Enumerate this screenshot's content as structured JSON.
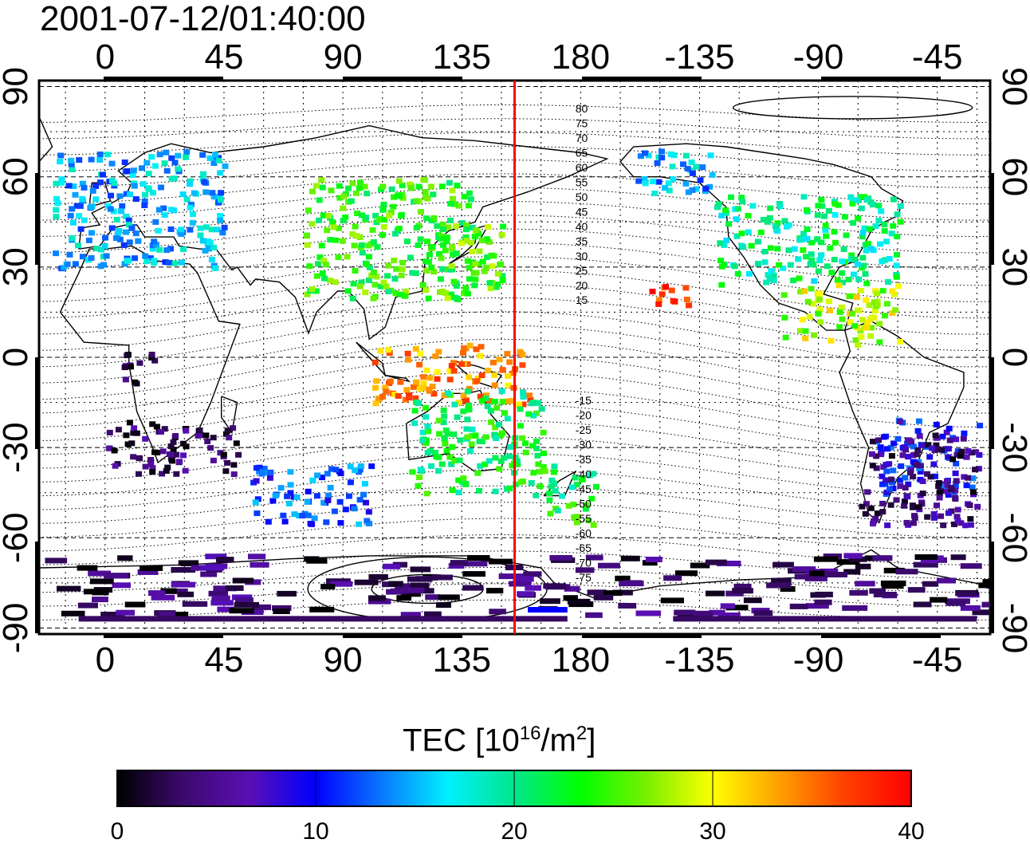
{
  "title": "2001-07-12/01:40:00",
  "colorbar": {
    "label_main": "TEC  [10",
    "label_exp": "16",
    "label_unit": "/m",
    "label_exp2": "2",
    "label_close": "]",
    "ticks": [
      "0",
      "10",
      "20",
      "30",
      "40"
    ],
    "range": [
      0,
      40
    ],
    "colors": [
      "#000000",
      "#3c0a6e",
      "#5a0fb4",
      "#0000ff",
      "#0a78ff",
      "#00f0ff",
      "#00e68c",
      "#00ff00",
      "#78f000",
      "#ffff00",
      "#ffa000",
      "#ff4000",
      "#ff0000"
    ]
  },
  "map": {
    "lon_ticks": [
      "0",
      "45",
      "90",
      "135",
      "180",
      "-135",
      "-90",
      "-45"
    ],
    "lon_values": [
      0,
      45,
      90,
      135,
      180,
      225,
      270,
      315
    ],
    "lat_ticks": [
      "90",
      "60",
      "30",
      "0",
      "-30",
      "-60",
      "-90"
    ],
    "lat_values": [
      90,
      60,
      30,
      0,
      -30,
      -60,
      -90
    ],
    "lon_range": [
      -25,
      335
    ],
    "lat_range": [
      -92,
      92
    ],
    "meridian_line_lon": 155,
    "meridian_color": "#ff0000",
    "mlat_labels": [
      "80",
      "75",
      "70",
      "65",
      "60",
      "55",
      "50",
      "45",
      "40",
      "35",
      "30",
      "25",
      "20",
      "15",
      "-15",
      "-20",
      "-25",
      "-30",
      "-35",
      "-40",
      "-45",
      "-50",
      "-55",
      "-60",
      "-65",
      "-70",
      "-75"
    ]
  },
  "chart_data": {
    "type": "heatmap",
    "title": "2001-07-12/01:40:00",
    "xlabel": "",
    "ylabel": "",
    "colorbar_label": "TEC [10^16/m^2]",
    "color_range": [
      0,
      40
    ],
    "regions": [
      {
        "lon": [
          -20,
          45
        ],
        "lat": [
          30,
          70
        ],
        "tec": 15
      },
      {
        "lon": [
          0,
          50
        ],
        "lat": [
          -38,
          -20
        ],
        "tec": 3
      },
      {
        "lon": [
          5,
          20
        ],
        "lat": [
          -8,
          2
        ],
        "tec": 2
      },
      {
        "lon": [
          55,
          100
        ],
        "lat": [
          -55,
          -35
        ],
        "tec": 12
      },
      {
        "lon": [
          75,
          140
        ],
        "lat": [
          20,
          60
        ],
        "tec": 24
      },
      {
        "lon": [
          120,
          150
        ],
        "lat": [
          20,
          45
        ],
        "tec": 25
      },
      {
        "lon": [
          100,
          160
        ],
        "lat": [
          -15,
          5
        ],
        "tec": 34
      },
      {
        "lon": [
          115,
          165
        ],
        "lat": [
          -45,
          -10
        ],
        "tec": 22
      },
      {
        "lon": [
          165,
          185
        ],
        "lat": [
          -55,
          -35
        ],
        "tec": 22
      },
      {
        "lon": [
          200,
          230
        ],
        "lat": [
          55,
          70
        ],
        "tec": 15
      },
      {
        "lon": [
          230,
          300
        ],
        "lat": [
          25,
          55
        ],
        "tec": 20
      },
      {
        "lon": [
          205,
          220
        ],
        "lat": [
          18,
          25
        ],
        "tec": 38
      },
      {
        "lon": [
          255,
          300
        ],
        "lat": [
          5,
          25
        ],
        "tec": 28
      },
      {
        "lon": [
          290,
          330
        ],
        "lat": [
          -45,
          -20
        ],
        "tec": 10
      },
      {
        "lon": [
          285,
          330
        ],
        "lat": [
          -55,
          -25
        ],
        "tec": 4
      },
      {
        "lon": [
          -25,
          335
        ],
        "lat": [
          -85,
          -65
        ],
        "tec": 3
      }
    ]
  }
}
